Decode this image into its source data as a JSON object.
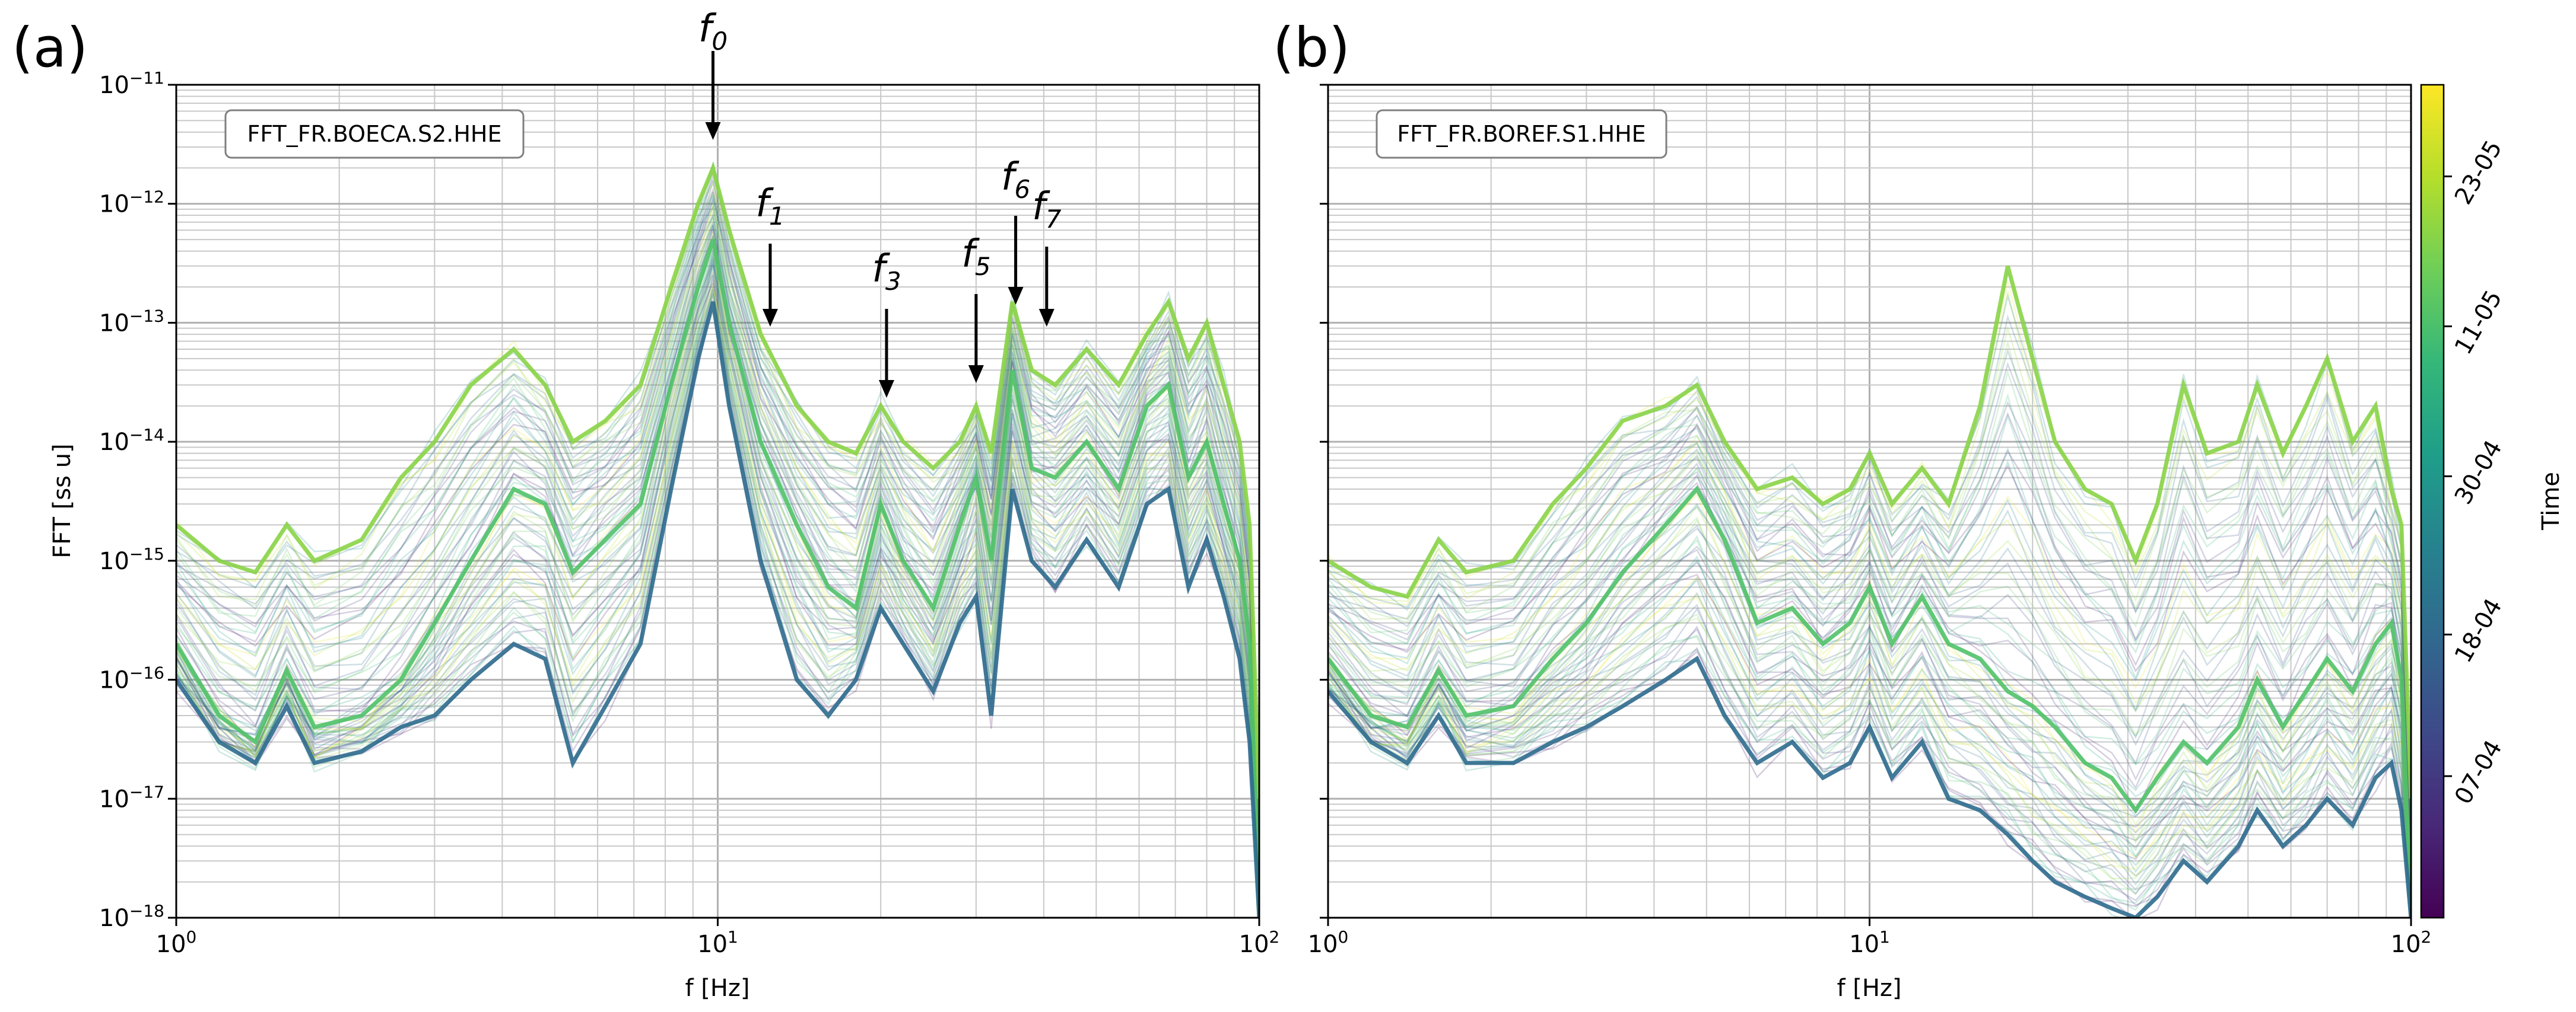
{
  "chart_data": [
    {
      "type": "line",
      "panel_label": "(a)",
      "station_label": "FFT_FR.BOECA.S2.HHE",
      "xlabel": "f [Hz]",
      "ylabel": "FFT [ss u]",
      "xscale": "log",
      "yscale": "log",
      "xlim": [
        1,
        100
      ],
      "ylim": [
        1e-18,
        1e-11
      ],
      "x_ticks": [
        "10^0",
        "10^1",
        "10^2"
      ],
      "y_ticks": [
        "10^-18",
        "10^-17",
        "10^-16",
        "10^-15",
        "10^-14",
        "10^-13",
        "10^-12",
        "10^-11"
      ],
      "grid": true,
      "series": [
        {
          "x": [
            1,
            1.2,
            1.4,
            1.6,
            1.8,
            2.2,
            2.6,
            3.0,
            3.5,
            4.2,
            4.8,
            5.4,
            6.2,
            7.2,
            8.2,
            9.2,
            9.8,
            10.5,
            12,
            14,
            16,
            18,
            20,
            22,
            25,
            28,
            30,
            32,
            35,
            38,
            42,
            48,
            55,
            62,
            68,
            74,
            80,
            86,
            92,
            96,
            100
          ],
          "y": [
            2e-16,
            5e-17,
            3e-17,
            1.2e-16,
            4e-17,
            5e-17,
            1e-16,
            3e-16,
            1e-15,
            4e-15,
            3e-15,
            8e-16,
            1.5e-15,
            3e-15,
            3e-14,
            2e-13,
            5e-13,
            1e-13,
            1e-14,
            2e-15,
            6e-16,
            4e-16,
            3e-15,
            1e-15,
            4e-16,
            2e-15,
            5e-15,
            1e-15,
            4e-14,
            6e-15,
            5e-15,
            1e-14,
            4e-15,
            2e-14,
            3e-14,
            5e-15,
            1e-14,
            3e-15,
            1e-15,
            2e-16,
            1e-18
          ]
        },
        {
          "x": [
            1,
            1.2,
            1.4,
            1.6,
            1.8,
            2.2,
            2.6,
            3.0,
            3.5,
            4.2,
            4.8,
            5.4,
            6.2,
            7.2,
            8.2,
            9.2,
            9.8,
            10.5,
            12,
            14,
            16,
            18,
            20,
            22,
            25,
            28,
            30,
            32,
            35,
            38,
            42,
            48,
            55,
            62,
            68,
            74,
            80,
            86,
            92,
            96,
            100
          ],
          "y": [
            1e-16,
            3e-17,
            2e-17,
            6e-17,
            2e-17,
            2.5e-17,
            4e-17,
            5e-17,
            1e-16,
            2e-16,
            1.5e-16,
            2e-17,
            6e-17,
            2e-16,
            4e-15,
            5e-14,
            1.5e-13,
            2e-14,
            1e-15,
            1e-16,
            5e-17,
            1e-16,
            4e-16,
            2e-16,
            8e-17,
            3e-16,
            5e-16,
            5e-17,
            4e-15,
            1e-15,
            6e-16,
            1.5e-15,
            6e-16,
            3e-15,
            4e-15,
            6e-16,
            1.5e-15,
            5e-16,
            1.5e-16,
            3e-17,
            1e-18
          ]
        },
        {
          "x": [
            1,
            1.2,
            1.4,
            1.6,
            1.8,
            2.2,
            2.6,
            3.0,
            3.5,
            4.2,
            4.8,
            5.4,
            6.2,
            7.2,
            8.2,
            9.2,
            9.8,
            10.5,
            12,
            14,
            16,
            18,
            20,
            22,
            25,
            28,
            30,
            32,
            35,
            38,
            42,
            48,
            55,
            62,
            68,
            74,
            80,
            86,
            92,
            96,
            100
          ],
          "y": [
            2e-15,
            1e-15,
            8e-16,
            2e-15,
            1e-15,
            1.5e-15,
            5e-15,
            1e-14,
            3e-14,
            6e-14,
            3e-14,
            1e-14,
            1.5e-14,
            3e-14,
            2e-13,
            1e-12,
            2e-12,
            6e-13,
            8e-14,
            2e-14,
            1e-14,
            8e-15,
            2e-14,
            1e-14,
            6e-15,
            1e-14,
            2e-14,
            8e-15,
            1.5e-13,
            4e-14,
            3e-14,
            6e-14,
            3e-14,
            8e-14,
            1.5e-13,
            5e-14,
            1e-13,
            3e-14,
            1e-14,
            2e-15,
            1e-17
          ]
        }
      ],
      "annotations": [
        {
          "sym": "f",
          "sub": "0",
          "x": 9.8
        },
        {
          "sym": "f",
          "sub": "1",
          "x": 12.5
        },
        {
          "sym": "f",
          "sub": "3",
          "x": 20.5
        },
        {
          "sym": "f",
          "sub": "5",
          "x": 30
        },
        {
          "sym": "f",
          "sub": "6",
          "x": 35.5
        },
        {
          "sym": "f",
          "sub": "7",
          "x": 40.5
        }
      ]
    },
    {
      "type": "line",
      "panel_label": "(b)",
      "station_label": "FFT_FR.BOREF.S1.HHE",
      "xlabel": "f [Hz]",
      "ylabel": "",
      "xscale": "log",
      "yscale": "log",
      "xlim": [
        1,
        100
      ],
      "ylim": [
        1e-18,
        1e-11
      ],
      "x_ticks": [
        "10^0",
        "10^1",
        "10^2"
      ],
      "grid": true,
      "series": [
        {
          "x": [
            1,
            1.2,
            1.4,
            1.6,
            1.8,
            2.2,
            2.6,
            3.0,
            3.5,
            4.2,
            4.8,
            5.4,
            6.2,
            7.2,
            8.2,
            9.2,
            10,
            11,
            12.5,
            14,
            16,
            18,
            20,
            22,
            25,
            28,
            31,
            34,
            38,
            42,
            48,
            52,
            58,
            64,
            70,
            78,
            86,
            92,
            96,
            100
          ],
          "y": [
            1.5e-16,
            5e-17,
            4e-17,
            1.2e-16,
            5e-17,
            6e-17,
            1.5e-16,
            3e-16,
            8e-16,
            2e-15,
            4e-15,
            1.5e-15,
            3e-16,
            4e-16,
            2e-16,
            3e-16,
            6e-16,
            2e-16,
            5e-16,
            2e-16,
            1.5e-16,
            8e-17,
            6e-17,
            4e-17,
            2e-17,
            1.5e-17,
            8e-18,
            1.5e-17,
            3e-17,
            2e-17,
            4e-17,
            1e-16,
            4e-17,
            8e-17,
            1.5e-16,
            8e-17,
            2e-16,
            3e-16,
            1e-16,
            1e-18
          ]
        },
        {
          "x": [
            1,
            1.2,
            1.4,
            1.6,
            1.8,
            2.2,
            2.6,
            3.0,
            3.5,
            4.2,
            4.8,
            5.4,
            6.2,
            7.2,
            8.2,
            9.2,
            10,
            11,
            12.5,
            14,
            16,
            18,
            20,
            22,
            25,
            28,
            31,
            34,
            38,
            42,
            48,
            52,
            58,
            64,
            70,
            78,
            86,
            92,
            96,
            100
          ],
          "y": [
            8e-17,
            3e-17,
            2e-17,
            5e-17,
            2e-17,
            2e-17,
            3e-17,
            4e-17,
            6e-17,
            1e-16,
            1.5e-16,
            5e-17,
            2e-17,
            3e-17,
            1.5e-17,
            2e-17,
            4e-17,
            1.5e-17,
            3e-17,
            1e-17,
            8e-18,
            5e-18,
            3e-18,
            2e-18,
            1.5e-18,
            1.2e-18,
            1e-18,
            1.5e-18,
            3e-18,
            2e-18,
            4e-18,
            8e-18,
            4e-18,
            6e-18,
            1e-17,
            6e-18,
            1.5e-17,
            2e-17,
            8e-18,
            1e-18
          ]
        },
        {
          "x": [
            1,
            1.2,
            1.4,
            1.6,
            1.8,
            2.2,
            2.6,
            3.0,
            3.5,
            4.2,
            4.8,
            5.4,
            6.2,
            7.2,
            8.2,
            9.2,
            10,
            11,
            12.5,
            14,
            16,
            18,
            20,
            22,
            25,
            28,
            31,
            34,
            38,
            42,
            48,
            52,
            58,
            64,
            70,
            78,
            86,
            92,
            96,
            100
          ],
          "y": [
            1e-15,
            6e-16,
            5e-16,
            1.5e-15,
            8e-16,
            1e-15,
            3e-15,
            6e-15,
            1.5e-14,
            2e-14,
            3e-14,
            1e-14,
            4e-15,
            5e-15,
            3e-15,
            4e-15,
            8e-15,
            3e-15,
            6e-15,
            3e-15,
            2e-14,
            3e-13,
            5e-14,
            1e-14,
            4e-15,
            3e-15,
            1e-15,
            3e-15,
            3e-14,
            8e-15,
            1e-14,
            3e-14,
            8e-15,
            2e-14,
            5e-14,
            1e-14,
            2e-14,
            4e-15,
            2e-15,
            1e-17
          ]
        }
      ]
    }
  ],
  "colorbar": {
    "label": "Time",
    "ticks": [
      "07-04",
      "18-04",
      "30-04",
      "11-05",
      "23-05"
    ],
    "tick_fractions": [
      0.17,
      0.34,
      0.53,
      0.71,
      0.89
    ],
    "colors": [
      "#440154",
      "#482878",
      "#3e4989",
      "#31688e",
      "#26828e",
      "#1f9e89",
      "#35b779",
      "#6ece58",
      "#b5de2b",
      "#fde725"
    ]
  }
}
